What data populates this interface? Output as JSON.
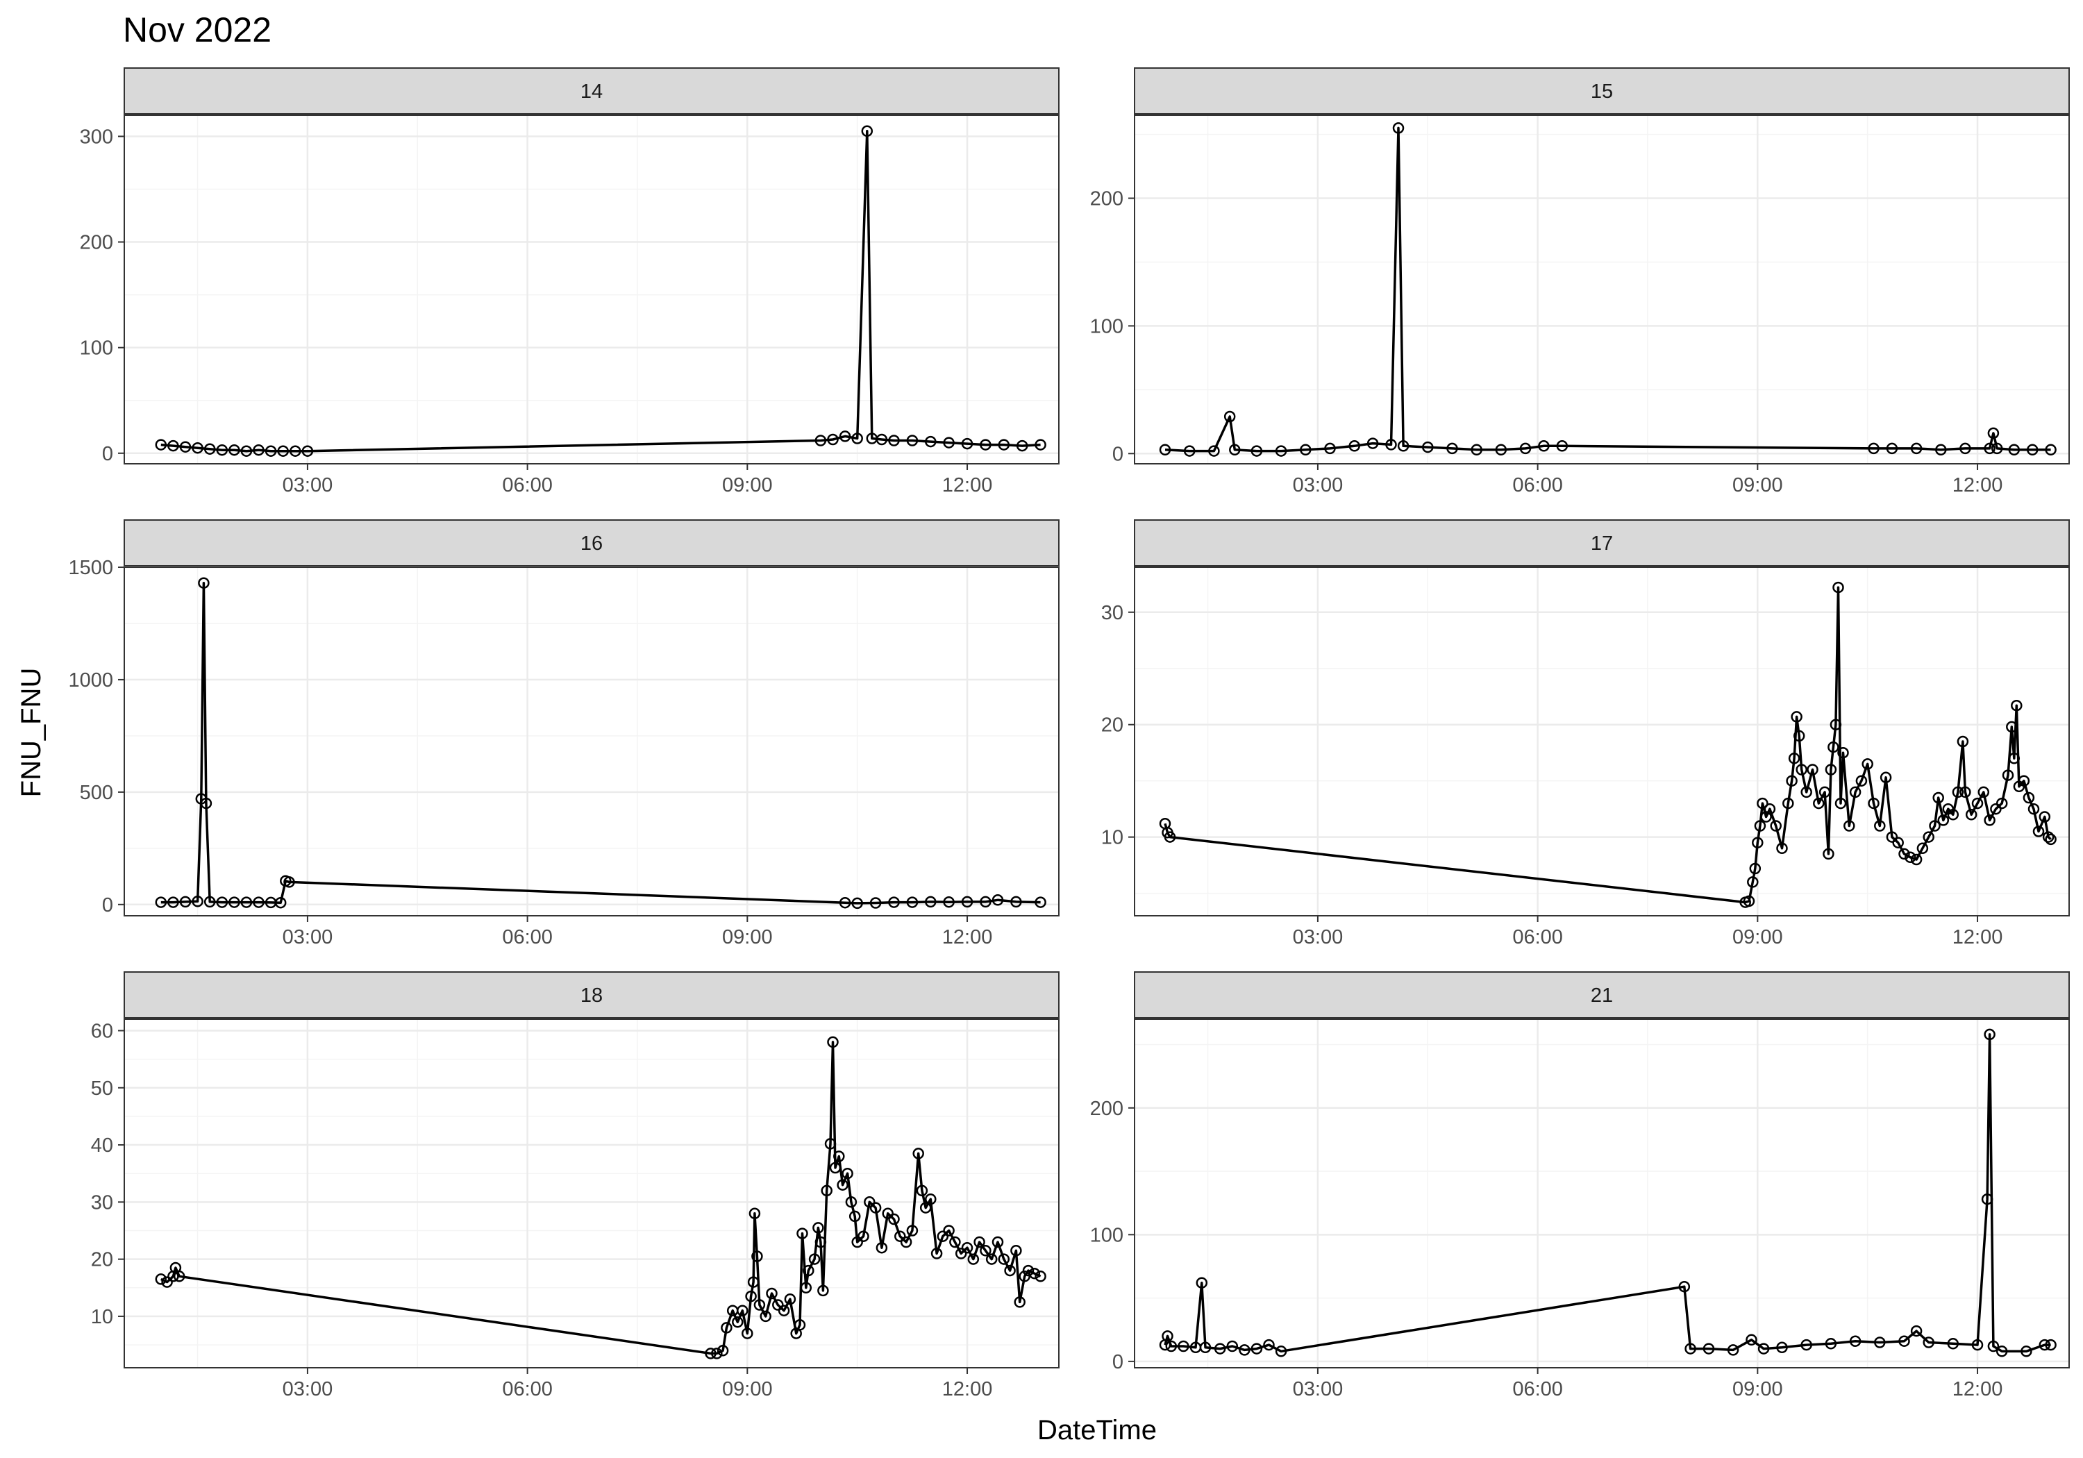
{
  "chart_data": {
    "type": "line",
    "title": "Nov 2022",
    "xlabel": "DateTime",
    "ylabel": "FNU_FNU",
    "xlim": [
      "00:30",
      "13:15"
    ],
    "x_ticks": [
      "03:00",
      "06:00",
      "09:00",
      "12:00"
    ],
    "grid": true,
    "markers": "open-circle",
    "colors": {
      "line": "#000000",
      "panel_border": "#333333",
      "grid_major": "#ebebeb",
      "grid_minor": "#f4f4f4",
      "strip_fill": "#d9d9d9"
    },
    "panels": [
      {
        "label": "14",
        "ylim": [
          -10,
          320
        ],
        "y_ticks": [
          0,
          100,
          200,
          300
        ],
        "points": [
          [
            "01:00",
            8
          ],
          [
            "01:10",
            7
          ],
          [
            "01:20",
            6
          ],
          [
            "01:30",
            5
          ],
          [
            "01:40",
            4
          ],
          [
            "01:50",
            3
          ],
          [
            "02:00",
            3
          ],
          [
            "02:10",
            2
          ],
          [
            "02:20",
            3
          ],
          [
            "02:30",
            2
          ],
          [
            "02:40",
            2
          ],
          [
            "02:50",
            2
          ],
          [
            "03:00",
            2
          ],
          [
            "10:00",
            12
          ],
          [
            "10:10",
            13
          ],
          [
            "10:20",
            16
          ],
          [
            "10:30",
            14
          ],
          [
            "10:38",
            305
          ],
          [
            "10:42",
            14
          ],
          [
            "10:50",
            13
          ],
          [
            "11:00",
            12
          ],
          [
            "11:15",
            12
          ],
          [
            "11:30",
            11
          ],
          [
            "11:45",
            10
          ],
          [
            "12:00",
            9
          ],
          [
            "12:15",
            8
          ],
          [
            "12:30",
            8
          ],
          [
            "12:45",
            7
          ],
          [
            "13:00",
            8
          ]
        ]
      },
      {
        "label": "15",
        "ylim": [
          -8,
          265
        ],
        "y_ticks": [
          0,
          100,
          200
        ],
        "points": [
          [
            "00:55",
            3
          ],
          [
            "01:15",
            2
          ],
          [
            "01:35",
            2
          ],
          [
            "01:48",
            29
          ],
          [
            "01:52",
            3
          ],
          [
            "02:10",
            2
          ],
          [
            "02:30",
            2
          ],
          [
            "02:50",
            3
          ],
          [
            "03:10",
            4
          ],
          [
            "03:30",
            6
          ],
          [
            "03:45",
            8
          ],
          [
            "04:00",
            7
          ],
          [
            "04:06",
            255
          ],
          [
            "04:10",
            6
          ],
          [
            "04:30",
            5
          ],
          [
            "04:50",
            4
          ],
          [
            "05:10",
            3
          ],
          [
            "05:30",
            3
          ],
          [
            "05:50",
            4
          ],
          [
            "06:05",
            6
          ],
          [
            "06:20",
            6
          ],
          [
            "10:35",
            4
          ],
          [
            "10:50",
            4
          ],
          [
            "11:10",
            4
          ],
          [
            "11:30",
            3
          ],
          [
            "11:50",
            4
          ],
          [
            "12:10",
            4
          ],
          [
            "12:13",
            16
          ],
          [
            "12:16",
            4
          ],
          [
            "12:30",
            3
          ],
          [
            "12:45",
            3
          ],
          [
            "13:00",
            3
          ]
        ]
      },
      {
        "label": "16",
        "ylim": [
          -50,
          1500
        ],
        "y_ticks": [
          0,
          500,
          1000,
          1500
        ],
        "points": [
          [
            "01:00",
            10
          ],
          [
            "01:10",
            10
          ],
          [
            "01:20",
            12
          ],
          [
            "01:30",
            14
          ],
          [
            "01:33",
            470
          ],
          [
            "01:35",
            1430
          ],
          [
            "01:37",
            450
          ],
          [
            "01:40",
            12
          ],
          [
            "01:50",
            10
          ],
          [
            "02:00",
            10
          ],
          [
            "02:10",
            10
          ],
          [
            "02:20",
            10
          ],
          [
            "02:30",
            9
          ],
          [
            "02:38",
            8
          ],
          [
            "02:42",
            105
          ],
          [
            "02:45",
            100
          ],
          [
            "10:20",
            8
          ],
          [
            "10:30",
            6
          ],
          [
            "10:45",
            7
          ],
          [
            "11:00",
            10
          ],
          [
            "11:15",
            10
          ],
          [
            "11:30",
            12
          ],
          [
            "11:45",
            11
          ],
          [
            "12:00",
            12
          ],
          [
            "12:15",
            12
          ],
          [
            "12:25",
            20
          ],
          [
            "12:40",
            12
          ],
          [
            "13:00",
            10
          ]
        ]
      },
      {
        "label": "17",
        "ylim": [
          3,
          34
        ],
        "y_ticks": [
          10,
          20,
          30
        ],
        "points": [
          [
            "00:55",
            11.2
          ],
          [
            "00:57",
            10.4
          ],
          [
            "00:59",
            10.0
          ],
          [
            "08:50",
            4.2
          ],
          [
            "08:53",
            4.3
          ],
          [
            "08:56",
            6.0
          ],
          [
            "08:58",
            7.2
          ],
          [
            "09:00",
            9.5
          ],
          [
            "09:02",
            11.0
          ],
          [
            "09:04",
            13.0
          ],
          [
            "09:07",
            11.8
          ],
          [
            "09:10",
            12.5
          ],
          [
            "09:15",
            11.0
          ],
          [
            "09:20",
            9.0
          ],
          [
            "09:25",
            13.0
          ],
          [
            "09:28",
            15.0
          ],
          [
            "09:30",
            17.0
          ],
          [
            "09:32",
            20.7
          ],
          [
            "09:34",
            19.0
          ],
          [
            "09:36",
            16.0
          ],
          [
            "09:40",
            14.0
          ],
          [
            "09:45",
            16.0
          ],
          [
            "09:50",
            13.0
          ],
          [
            "09:55",
            14.0
          ],
          [
            "09:58",
            8.5
          ],
          [
            "10:00",
            16.0
          ],
          [
            "10:02",
            18.0
          ],
          [
            "10:04",
            20.0
          ],
          [
            "10:06",
            32.2
          ],
          [
            "10:08",
            13.0
          ],
          [
            "10:10",
            17.5
          ],
          [
            "10:15",
            11.0
          ],
          [
            "10:20",
            14.0
          ],
          [
            "10:25",
            15.0
          ],
          [
            "10:30",
            16.5
          ],
          [
            "10:35",
            13.0
          ],
          [
            "10:40",
            11.0
          ],
          [
            "10:45",
            15.3
          ],
          [
            "10:50",
            10.0
          ],
          [
            "10:55",
            9.5
          ],
          [
            "11:00",
            8.5
          ],
          [
            "11:05",
            8.2
          ],
          [
            "11:10",
            8.0
          ],
          [
            "11:15",
            9.0
          ],
          [
            "11:20",
            10.0
          ],
          [
            "11:25",
            11.0
          ],
          [
            "11:28",
            13.5
          ],
          [
            "11:32",
            11.5
          ],
          [
            "11:36",
            12.5
          ],
          [
            "11:40",
            12.0
          ],
          [
            "11:44",
            14.0
          ],
          [
            "11:48",
            18.5
          ],
          [
            "11:50",
            14.0
          ],
          [
            "11:55",
            12.0
          ],
          [
            "12:00",
            13.0
          ],
          [
            "12:05",
            14.0
          ],
          [
            "12:10",
            11.5
          ],
          [
            "12:15",
            12.5
          ],
          [
            "12:20",
            13.0
          ],
          [
            "12:25",
            15.5
          ],
          [
            "12:28",
            19.8
          ],
          [
            "12:30",
            17.0
          ],
          [
            "12:32",
            21.7
          ],
          [
            "12:34",
            14.5
          ],
          [
            "12:38",
            15.0
          ],
          [
            "12:42",
            13.5
          ],
          [
            "12:46",
            12.5
          ],
          [
            "12:50",
            10.5
          ],
          [
            "12:55",
            11.8
          ],
          [
            "12:58",
            10.0
          ],
          [
            "13:00",
            9.8
          ]
        ]
      },
      {
        "label": "18",
        "ylim": [
          1,
          62
        ],
        "y_ticks": [
          10,
          20,
          30,
          40,
          50,
          60
        ],
        "points": [
          [
            "01:00",
            16.5
          ],
          [
            "01:05",
            16.0
          ],
          [
            "01:10",
            17.0
          ],
          [
            "01:12",
            18.5
          ],
          [
            "01:15",
            17.0
          ],
          [
            "08:30",
            3.5
          ],
          [
            "08:35",
            3.5
          ],
          [
            "08:40",
            4.0
          ],
          [
            "08:43",
            8.0
          ],
          [
            "08:48",
            11.0
          ],
          [
            "08:52",
            9.0
          ],
          [
            "08:56",
            11.0
          ],
          [
            "09:00",
            7.0
          ],
          [
            "09:03",
            13.5
          ],
          [
            "09:05",
            16.0
          ],
          [
            "09:06",
            28.0
          ],
          [
            "09:08",
            20.5
          ],
          [
            "09:10",
            12.0
          ],
          [
            "09:15",
            10.0
          ],
          [
            "09:20",
            14.0
          ],
          [
            "09:25",
            12.0
          ],
          [
            "09:30",
            11.0
          ],
          [
            "09:35",
            13.0
          ],
          [
            "09:40",
            7.0
          ],
          [
            "09:43",
            8.5
          ],
          [
            "09:45",
            24.5
          ],
          [
            "09:48",
            15.0
          ],
          [
            "09:50",
            18.0
          ],
          [
            "09:55",
            20.0
          ],
          [
            "09:58",
            25.5
          ],
          [
            "10:00",
            23.0
          ],
          [
            "10:02",
            14.5
          ],
          [
            "10:05",
            32.0
          ],
          [
            "10:08",
            40.2
          ],
          [
            "10:10",
            58.0
          ],
          [
            "10:12",
            36.0
          ],
          [
            "10:15",
            38.0
          ],
          [
            "10:18",
            33.0
          ],
          [
            "10:22",
            35.0
          ],
          [
            "10:25",
            30.0
          ],
          [
            "10:28",
            27.5
          ],
          [
            "10:30",
            23.0
          ],
          [
            "10:35",
            24.0
          ],
          [
            "10:40",
            30.0
          ],
          [
            "10:45",
            29.0
          ],
          [
            "10:50",
            22.0
          ],
          [
            "10:55",
            28.0
          ],
          [
            "11:00",
            27.0
          ],
          [
            "11:05",
            24.0
          ],
          [
            "11:10",
            23.0
          ],
          [
            "11:15",
            25.0
          ],
          [
            "11:20",
            38.5
          ],
          [
            "11:23",
            32.0
          ],
          [
            "11:26",
            29.0
          ],
          [
            "11:30",
            30.5
          ],
          [
            "11:35",
            21.0
          ],
          [
            "11:40",
            24.0
          ],
          [
            "11:45",
            25.0
          ],
          [
            "11:50",
            23.0
          ],
          [
            "11:55",
            21.0
          ],
          [
            "12:00",
            22.0
          ],
          [
            "12:05",
            20.0
          ],
          [
            "12:10",
            23.0
          ],
          [
            "12:15",
            21.5
          ],
          [
            "12:20",
            20.0
          ],
          [
            "12:25",
            23.0
          ],
          [
            "12:30",
            20.0
          ],
          [
            "12:35",
            18.0
          ],
          [
            "12:40",
            21.5
          ],
          [
            "12:43",
            12.5
          ],
          [
            "12:47",
            17.0
          ],
          [
            "12:50",
            18.0
          ],
          [
            "12:55",
            17.5
          ],
          [
            "13:00",
            17.0
          ]
        ]
      },
      {
        "label": "21",
        "ylim": [
          -5,
          270
        ],
        "y_ticks": [
          0,
          100,
          200
        ],
        "points": [
          [
            "00:55",
            13
          ],
          [
            "00:57",
            20
          ],
          [
            "01:00",
            12
          ],
          [
            "01:10",
            12
          ],
          [
            "01:20",
            11
          ],
          [
            "01:25",
            62
          ],
          [
            "01:28",
            11
          ],
          [
            "01:40",
            10
          ],
          [
            "01:50",
            12
          ],
          [
            "02:00",
            9
          ],
          [
            "02:10",
            10
          ],
          [
            "02:20",
            13
          ],
          [
            "02:30",
            8
          ],
          [
            "08:00",
            59
          ],
          [
            "08:05",
            10
          ],
          [
            "08:20",
            10
          ],
          [
            "08:40",
            9
          ],
          [
            "08:55",
            17
          ],
          [
            "09:05",
            10
          ],
          [
            "09:20",
            11
          ],
          [
            "09:40",
            13
          ],
          [
            "10:00",
            14
          ],
          [
            "10:20",
            16
          ],
          [
            "10:40",
            15
          ],
          [
            "11:00",
            16
          ],
          [
            "11:10",
            24
          ],
          [
            "11:20",
            15
          ],
          [
            "11:40",
            14
          ],
          [
            "12:00",
            13
          ],
          [
            "12:08",
            128
          ],
          [
            "12:10",
            258
          ],
          [
            "12:13",
            12
          ],
          [
            "12:20",
            8
          ],
          [
            "12:40",
            8
          ],
          [
            "12:55",
            13
          ],
          [
            "13:00",
            13
          ]
        ]
      }
    ]
  }
}
